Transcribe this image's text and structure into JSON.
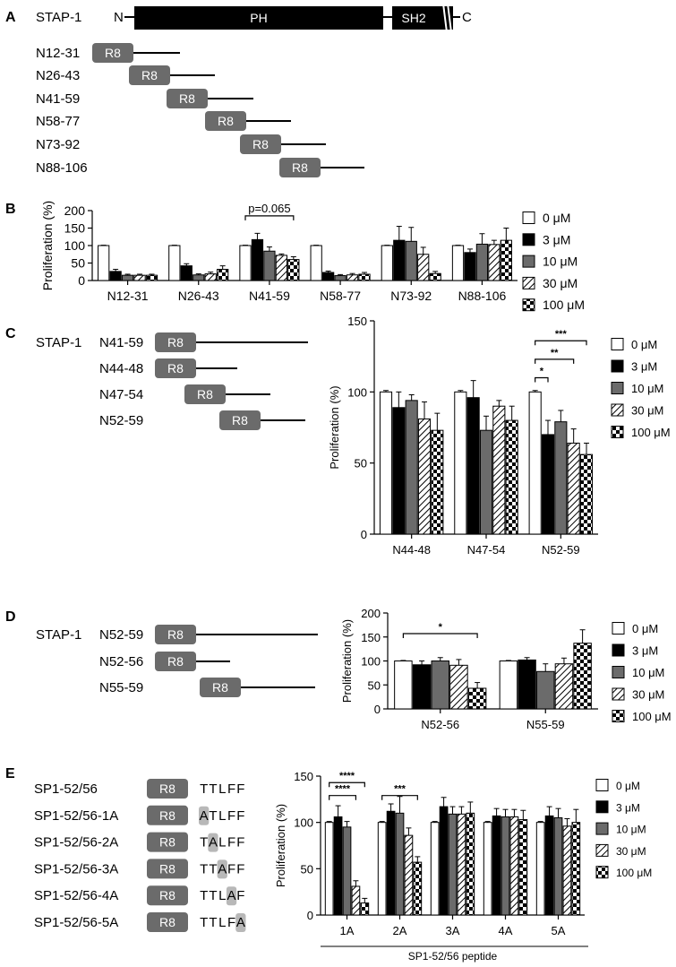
{
  "panels": {
    "A": {
      "letter": "A",
      "protein_name": "STAP-1",
      "n_term": "N",
      "c_term": "C",
      "domains": [
        "PH",
        "SH2"
      ],
      "tag": "R8",
      "peptides": [
        "N12-31",
        "N26-43",
        "N41-59",
        "N58-77",
        "N73-92",
        "N88-106"
      ]
    },
    "C": {
      "letter": "C",
      "protein_name": "STAP-1",
      "tag": "R8",
      "peptides": [
        "N41-59",
        "N44-48",
        "N47-54",
        "N52-59"
      ]
    },
    "D": {
      "letter": "D",
      "protein_name": "STAP-1",
      "tag": "R8",
      "peptides": [
        "N52-59",
        "N52-56",
        "N55-59"
      ]
    },
    "E": {
      "letter": "E",
      "tag": "R8",
      "peptides": [
        {
          "name": "SP1-52/56",
          "seq": "TTLFF",
          "mut_pos": -1
        },
        {
          "name": "SP1-52/56-1A",
          "seq": "ATLFF",
          "mut_pos": 0
        },
        {
          "name": "SP1-52/56-2A",
          "seq": "TALFF",
          "mut_pos": 1
        },
        {
          "name": "SP1-52/56-3A",
          "seq": "TTAFF",
          "mut_pos": 2
        },
        {
          "name": "SP1-52/56-4A",
          "seq": "TTLAF",
          "mut_pos": 3
        },
        {
          "name": "SP1-52/56-5A",
          "seq": "TTLFA",
          "mut_pos": 4
        }
      ]
    }
  },
  "legend": [
    "0 μM",
    "3 μM",
    "10 μM",
    "30 μM",
    "100 μM"
  ],
  "chart_data": [
    {
      "id": "B",
      "letter": "B",
      "type": "bar",
      "ylabel": "Proliferation (%)",
      "xlabel": "",
      "ylim": [
        0,
        200
      ],
      "yticks": [
        0,
        50,
        100,
        150,
        200
      ],
      "categories": [
        "N12-31",
        "N26-43",
        "N41-59",
        "N58-77",
        "N73-92",
        "N88-106"
      ],
      "series": [
        {
          "name": "0 μM",
          "values": [
            100,
            100,
            100,
            100,
            100,
            100
          ],
          "err": [
            1,
            1,
            1,
            1,
            1,
            1
          ]
        },
        {
          "name": "3 μM",
          "values": [
            26,
            42,
            117,
            23,
            115,
            80
          ],
          "err": [
            6,
            6,
            18,
            4,
            40,
            10
          ]
        },
        {
          "name": "10 μM",
          "values": [
            15,
            16,
            84,
            14,
            112,
            104
          ],
          "err": [
            3,
            3,
            12,
            3,
            40,
            30
          ]
        },
        {
          "name": "30 μM",
          "values": [
            15,
            19,
            72,
            16,
            75,
            103
          ],
          "err": [
            3,
            5,
            4,
            4,
            20,
            12
          ]
        },
        {
          "name": "100 μM",
          "values": [
            15,
            32,
            60,
            18,
            20,
            115
          ],
          "err": [
            3,
            10,
            8,
            5,
            6,
            35
          ]
        }
      ],
      "significance": [
        {
          "text": "p=0.065",
          "from": [
            2,
            0
          ],
          "to": [
            2,
            4
          ],
          "y": 185
        }
      ]
    },
    {
      "id": "C",
      "type": "bar",
      "ylabel": "Proliferation (%)",
      "xlabel": "",
      "ylim": [
        0,
        150
      ],
      "yticks": [
        0,
        50,
        100,
        150
      ],
      "categories": [
        "N44-48",
        "N47-54",
        "N52-59"
      ],
      "series": [
        {
          "name": "0 μM",
          "values": [
            100,
            100,
            100
          ],
          "err": [
            1,
            1,
            1
          ]
        },
        {
          "name": "3 μM",
          "values": [
            89,
            96,
            70
          ],
          "err": [
            11,
            12,
            10
          ]
        },
        {
          "name": "10 μM",
          "values": [
            94,
            73,
            79
          ],
          "err": [
            4,
            10,
            8
          ]
        },
        {
          "name": "30 μM",
          "values": [
            81,
            90,
            64
          ],
          "err": [
            12,
            4,
            10
          ]
        },
        {
          "name": "100 μM",
          "values": [
            73,
            80,
            56
          ],
          "err": [
            12,
            10,
            8
          ]
        }
      ],
      "significance": [
        {
          "text": "*",
          "from": [
            2,
            0
          ],
          "to": [
            2,
            1
          ],
          "y": 110
        },
        {
          "text": "**",
          "from": [
            2,
            0
          ],
          "to": [
            2,
            3
          ],
          "y": 123
        },
        {
          "text": "***",
          "from": [
            2,
            0
          ],
          "to": [
            2,
            4
          ],
          "y": 136
        }
      ]
    },
    {
      "id": "D",
      "type": "bar",
      "ylabel": "Proliferation (%)",
      "xlabel": "",
      "ylim": [
        0,
        200
      ],
      "yticks": [
        0,
        50,
        100,
        150,
        200
      ],
      "categories": [
        "N52-56",
        "N55-59"
      ],
      "series": [
        {
          "name": "0 μM",
          "values": [
            100,
            100
          ],
          "err": [
            1,
            1
          ]
        },
        {
          "name": "3 μM",
          "values": [
            92,
            102
          ],
          "err": [
            8,
            5
          ]
        },
        {
          "name": "10 μM",
          "values": [
            100,
            78
          ],
          "err": [
            7,
            16
          ]
        },
        {
          "name": "30 μM",
          "values": [
            91,
            94
          ],
          "err": [
            12,
            12
          ]
        },
        {
          "name": "100 μM",
          "values": [
            43,
            137
          ],
          "err": [
            12,
            28
          ]
        }
      ],
      "significance": [
        {
          "text": "*",
          "from": [
            0,
            0
          ],
          "to": [
            0,
            4
          ],
          "y": 157
        }
      ]
    },
    {
      "id": "E",
      "type": "bar",
      "ylabel": "Proliferation (%)",
      "xlabel": "SP1-52/56 peptide",
      "ylim": [
        0,
        150
      ],
      "yticks": [
        0,
        50,
        100,
        150
      ],
      "categories": [
        "1A",
        "2A",
        "3A",
        "4A",
        "5A"
      ],
      "series": [
        {
          "name": "0 μM",
          "values": [
            100,
            100,
            100,
            100,
            100
          ],
          "err": [
            1,
            1,
            1,
            1,
            1
          ]
        },
        {
          "name": "3 μM",
          "values": [
            106,
            112,
            117,
            107,
            107
          ],
          "err": [
            12,
            8,
            10,
            8,
            10
          ]
        },
        {
          "name": "10 μM",
          "values": [
            95,
            110,
            109,
            106,
            105
          ],
          "err": [
            6,
            18,
            8,
            8,
            10
          ]
        },
        {
          "name": "30 μM",
          "values": [
            31,
            86,
            109,
            106,
            96
          ],
          "err": [
            6,
            8,
            8,
            8,
            8
          ]
        },
        {
          "name": "100 μM",
          "values": [
            13,
            57,
            110,
            103,
            100
          ],
          "err": [
            5,
            6,
            12,
            10,
            14
          ]
        }
      ],
      "significance": [
        {
          "text": "****",
          "from": [
            0,
            0
          ],
          "to": [
            0,
            4
          ],
          "y": 143
        },
        {
          "text": "****",
          "from": [
            0,
            0
          ],
          "to": [
            0,
            3
          ],
          "y": 129
        },
        {
          "text": "***",
          "from": [
            1,
            0
          ],
          "to": [
            1,
            4
          ],
          "y": 129
        }
      ]
    }
  ]
}
